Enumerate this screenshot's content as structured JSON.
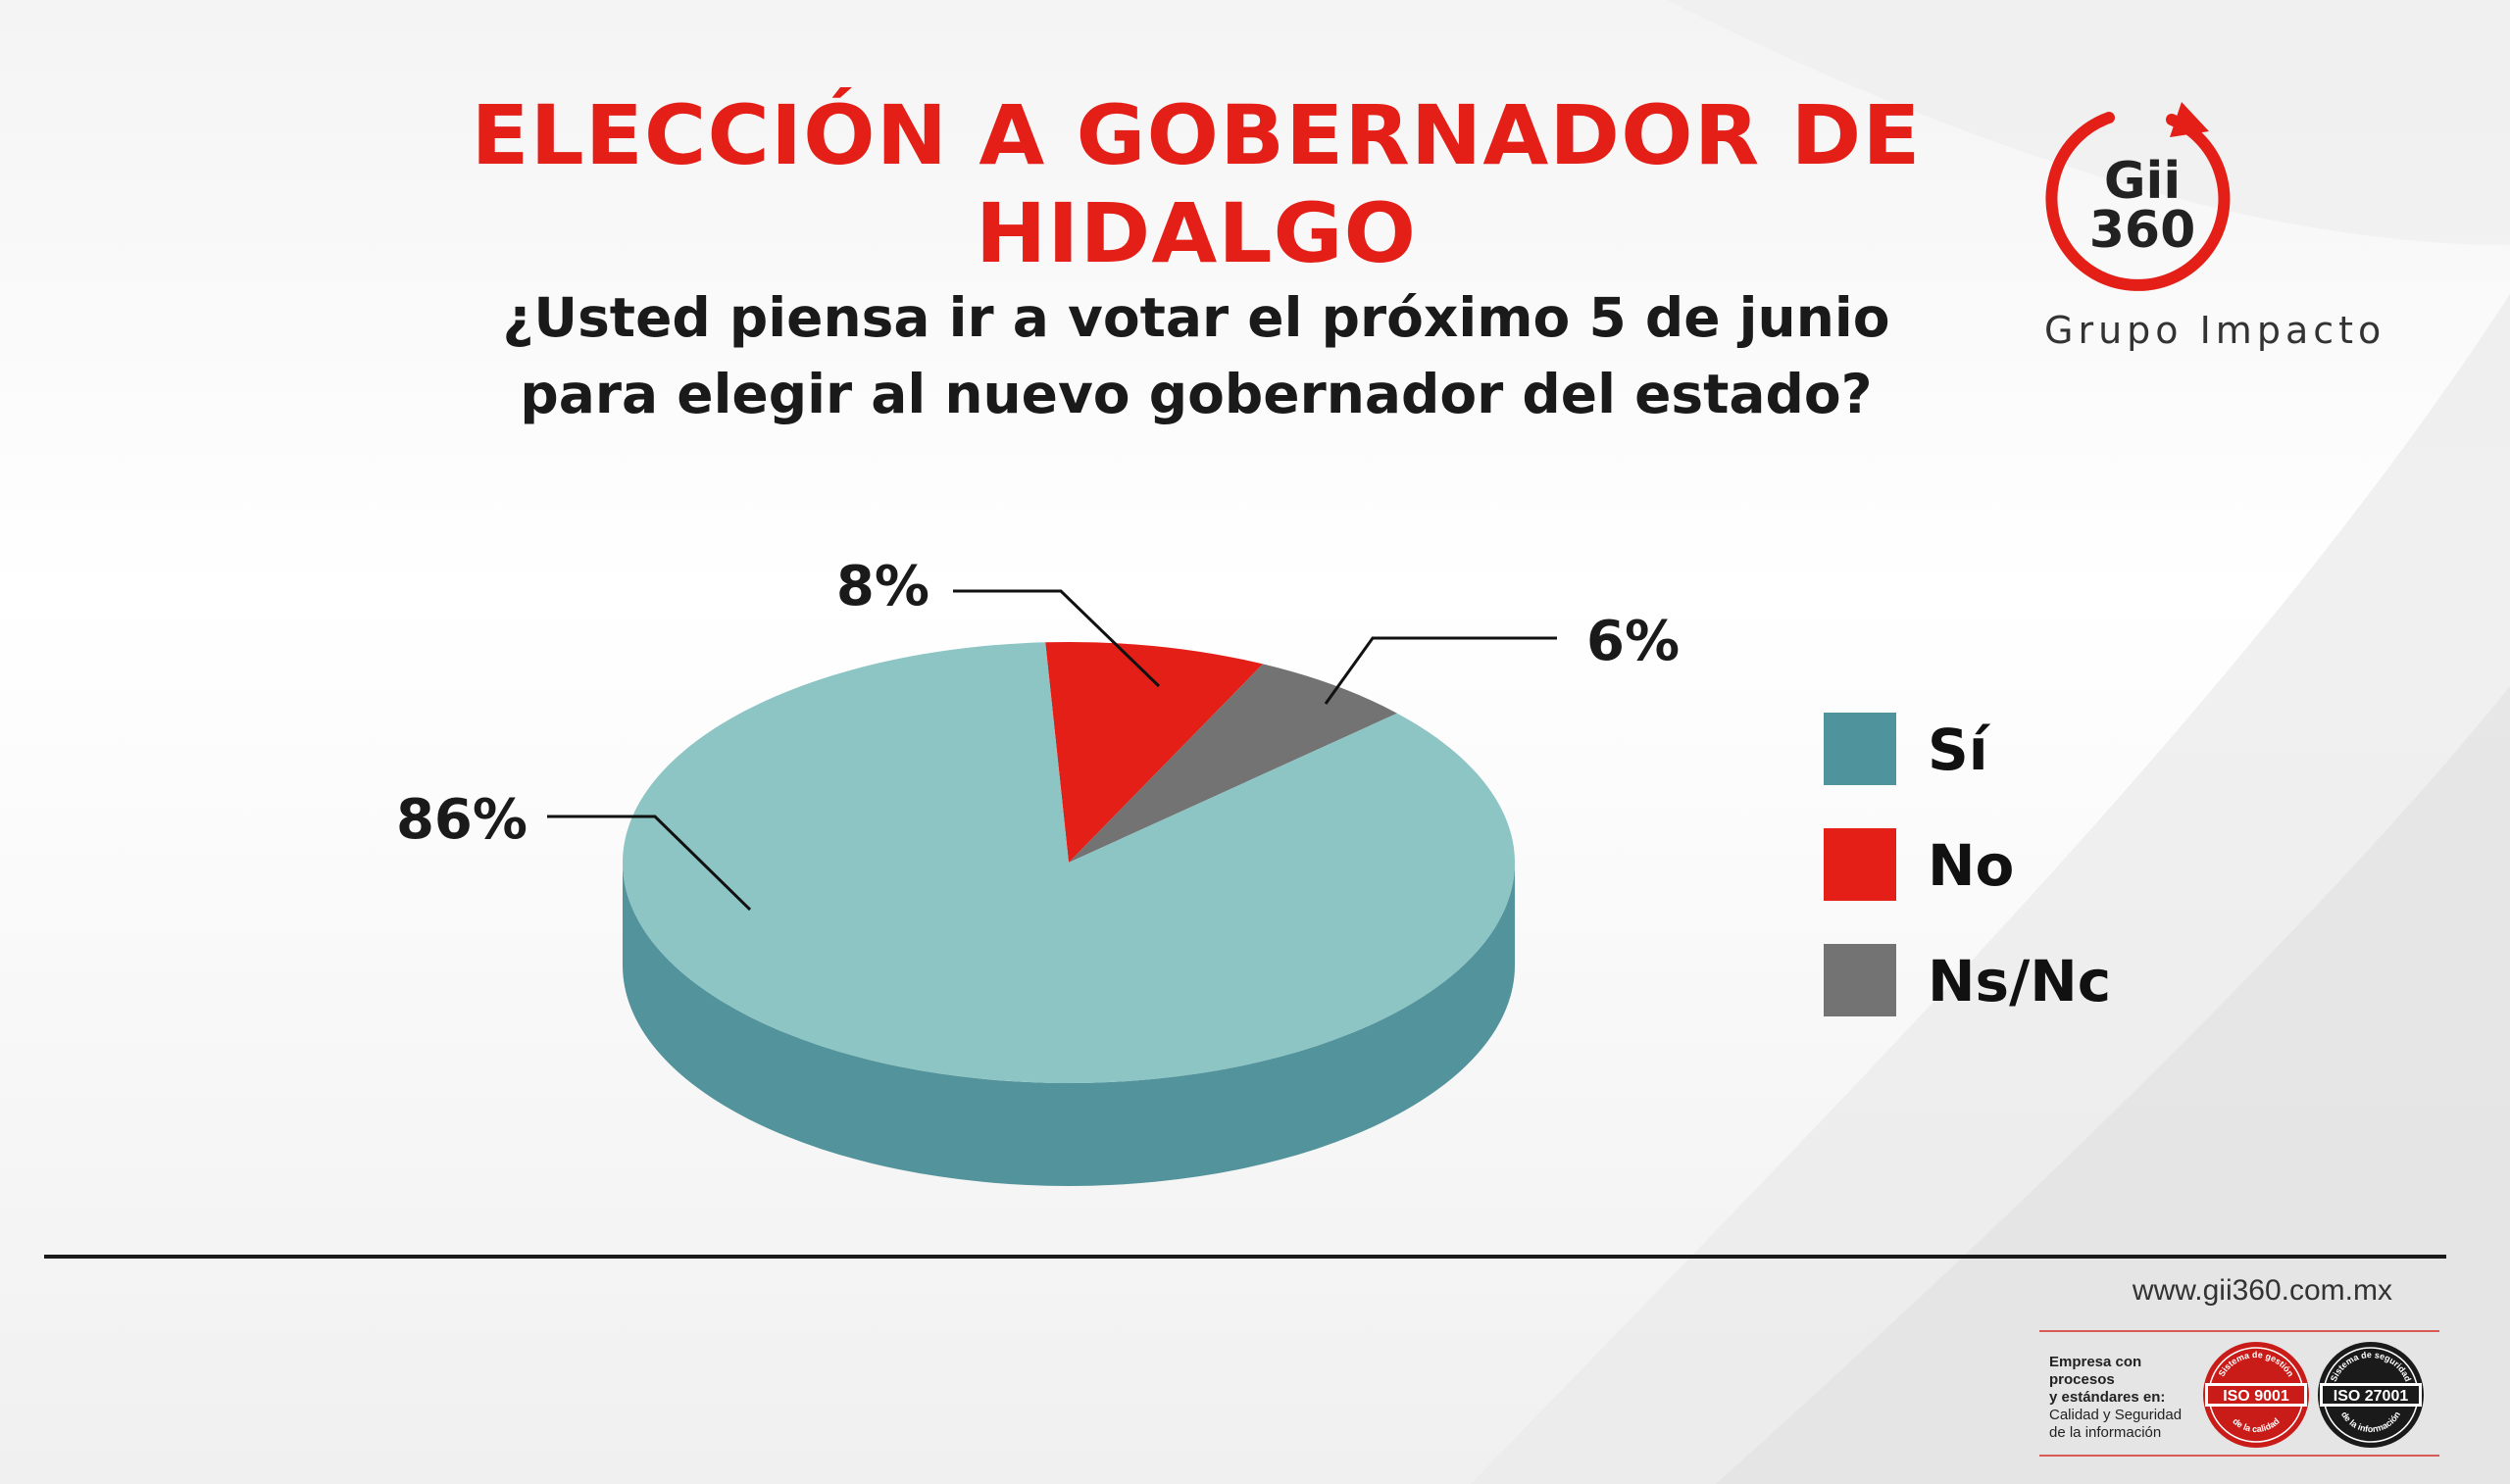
{
  "header": {
    "title_line1": "ELECCIÓN A GOBERNADOR DE",
    "title_line2": "HIDALGO",
    "question_line1": "¿Usted piensa ir a votar el próximo 5 de junio",
    "question_line2": "para elegir al nuevo gobernador del estado?"
  },
  "logo": {
    "line1": "Gii",
    "line2": "360",
    "name": "Grupo Impacto",
    "color": "#e31f18"
  },
  "chart_data": {
    "type": "pie",
    "style": "3d",
    "categories": [
      "Sí",
      "No",
      "Ns/Nc"
    ],
    "values": [
      86,
      8,
      6
    ],
    "labels": [
      "86%",
      "8%",
      "6%"
    ],
    "colors": [
      "#8cc5c4",
      "#e31f18",
      "#737373"
    ],
    "side_colors": [
      "#52939c",
      "#a8150f",
      "#4f4f4f"
    ],
    "legend_colors": [
      "#4f939c",
      "#e31f18",
      "#737373"
    ],
    "legend": [
      "Sí",
      "No",
      "Ns/Nc"
    ],
    "legend_position": "right"
  },
  "footer": {
    "website": "www.gii360.com.mx",
    "cert_line1": "Empresa con procesos",
    "cert_line2": "y estándares en:",
    "cert_line3": "Calidad y Seguridad",
    "cert_line4": "de la información",
    "iso1": "ISO 9001",
    "iso1_top": "Sistema de gestión",
    "iso1_bottom": "de la calidad",
    "iso2": "ISO 27001",
    "iso2_top": "Sistema de seguridad",
    "iso2_bottom": "de la información"
  }
}
